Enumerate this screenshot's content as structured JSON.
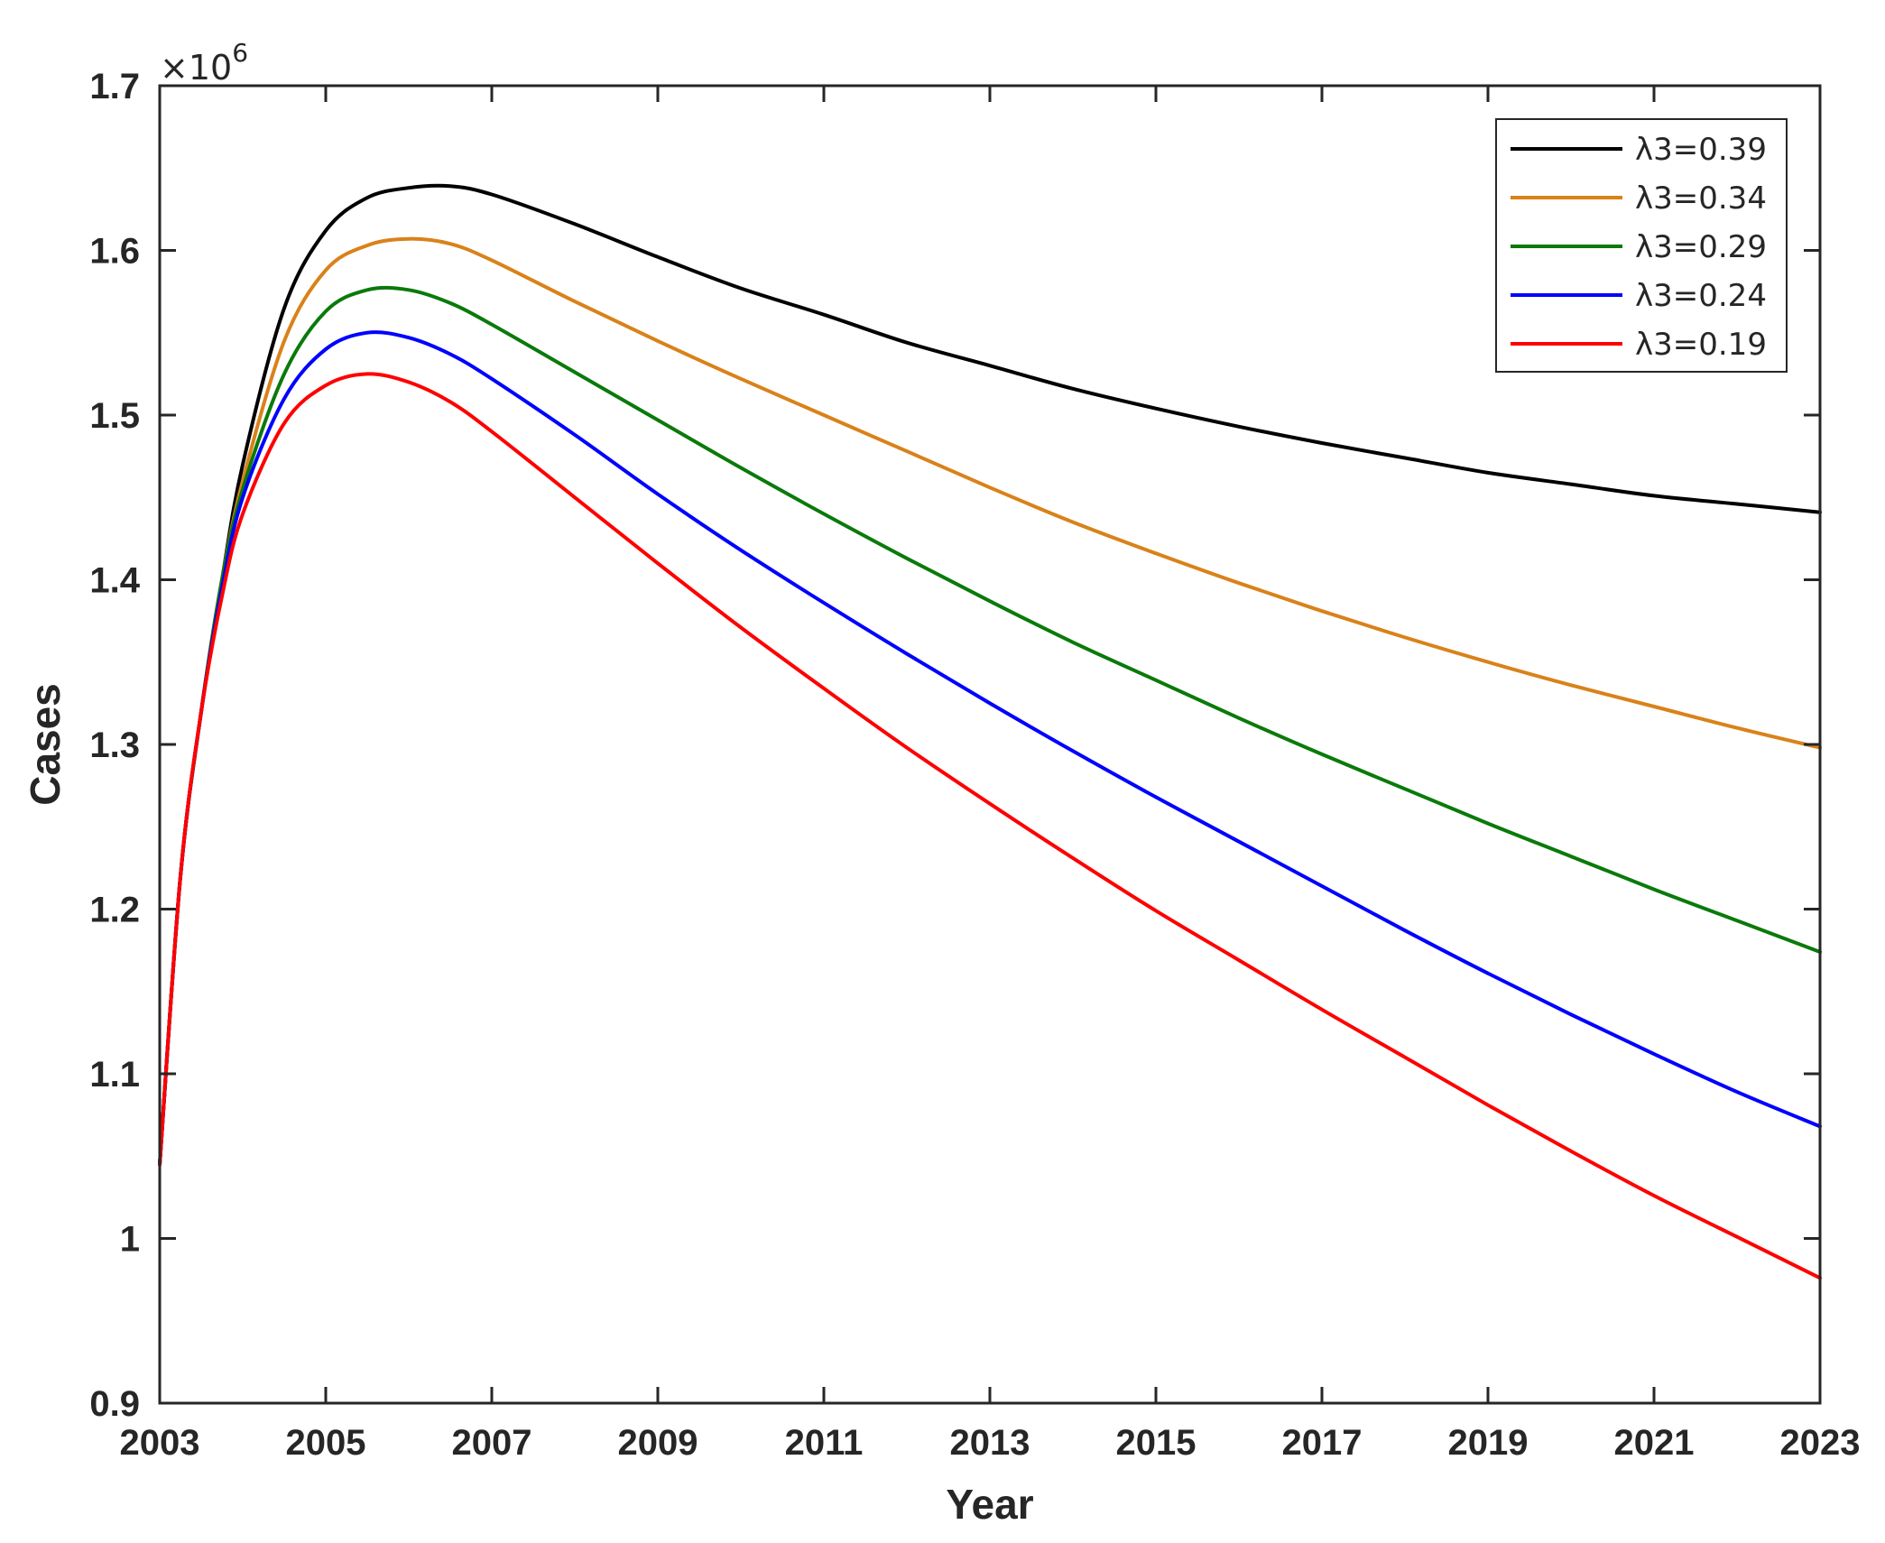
{
  "chart_data": {
    "type": "line",
    "title": "",
    "xlabel": "Year",
    "ylabel": "Cases",
    "xlim": [
      2003,
      2023
    ],
    "ylim": [
      0.9,
      1.7
    ],
    "y_multiplier_base": "×10",
    "y_multiplier_exp": "6",
    "xticks": [
      2003,
      2005,
      2007,
      2009,
      2011,
      2013,
      2015,
      2017,
      2019,
      2021,
      2023
    ],
    "xtick_labels": [
      "2003",
      "2005",
      "2007",
      "2009",
      "2011",
      "2013",
      "2015",
      "2017",
      "2019",
      "2021",
      "2023"
    ],
    "yticks": [
      0.9,
      1.0,
      1.1,
      1.2,
      1.3,
      1.4,
      1.5,
      1.6,
      1.7
    ],
    "ytick_labels": [
      "0.9",
      "1",
      "1.1",
      "1.2",
      "1.3",
      "1.4",
      "1.5",
      "1.6",
      "1.7"
    ],
    "grid": false,
    "legend_position": "top-right",
    "x": [
      2003.0,
      2003.25,
      2003.5,
      2003.75,
      2004.0,
      2004.5,
      2005.0,
      2005.5,
      2006.0,
      2006.5,
      2007.0,
      2008.0,
      2009.0,
      2010.0,
      2011.0,
      2012.0,
      2013.0,
      2014.0,
      2015.0,
      2016.0,
      2017.0,
      2018.0,
      2019.0,
      2020.0,
      2021.0,
      2022.0,
      2023.0
    ],
    "series": [
      {
        "name": "λ3=0.39",
        "color": "#000000",
        "values": [
          1.045,
          1.22,
          1.32,
          1.4,
          1.47,
          1.565,
          1.612,
          1.632,
          1.638,
          1.639,
          1.634,
          1.616,
          1.596,
          1.577,
          1.561,
          1.544,
          1.53,
          1.516,
          1.504,
          1.493,
          1.483,
          1.474,
          1.465,
          1.458,
          1.451,
          1.446,
          1.441
        ]
      },
      {
        "name": "λ3=0.34",
        "color": "#D9821A",
        "values": [
          1.045,
          1.22,
          1.32,
          1.4,
          1.46,
          1.545,
          1.588,
          1.603,
          1.607,
          1.604,
          1.594,
          1.569,
          1.545,
          1.522,
          1.5,
          1.478,
          1.456,
          1.435,
          1.416,
          1.398,
          1.381,
          1.365,
          1.35,
          1.336,
          1.323,
          1.31,
          1.298
        ]
      },
      {
        "name": "λ3=0.29",
        "color": "#0A7A0A",
        "values": [
          1.045,
          1.22,
          1.32,
          1.4,
          1.455,
          1.525,
          1.563,
          1.576,
          1.576,
          1.568,
          1.555,
          1.526,
          1.497,
          1.468,
          1.44,
          1.413,
          1.387,
          1.362,
          1.339,
          1.316,
          1.294,
          1.273,
          1.252,
          1.232,
          1.212,
          1.193,
          1.174
        ]
      },
      {
        "name": "λ3=0.24",
        "color": "#0000FF",
        "values": [
          1.045,
          1.22,
          1.32,
          1.395,
          1.45,
          1.51,
          1.54,
          1.55,
          1.547,
          1.537,
          1.522,
          1.488,
          1.452,
          1.418,
          1.386,
          1.355,
          1.325,
          1.296,
          1.268,
          1.241,
          1.214,
          1.187,
          1.161,
          1.136,
          1.112,
          1.089,
          1.068
        ]
      },
      {
        "name": "λ3=0.19",
        "color": "#FF0000",
        "values": [
          1.045,
          1.22,
          1.32,
          1.39,
          1.44,
          1.495,
          1.518,
          1.525,
          1.52,
          1.508,
          1.49,
          1.45,
          1.41,
          1.371,
          1.334,
          1.298,
          1.264,
          1.231,
          1.199,
          1.169,
          1.139,
          1.11,
          1.081,
          1.053,
          1.026,
          1.001,
          0.976
        ]
      }
    ]
  }
}
